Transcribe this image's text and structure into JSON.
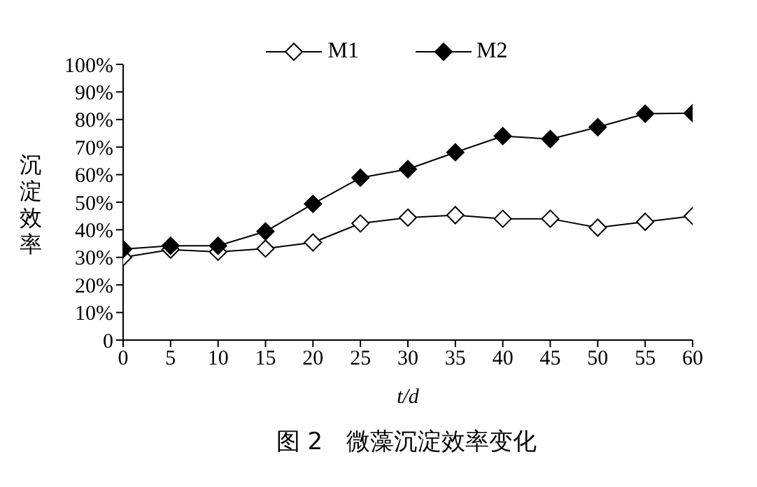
{
  "chart_data": {
    "type": "line",
    "title": "图 2　微藻沉淀效率变化",
    "xlabel": "t/d",
    "ylabel": "沉淀效率",
    "x": [
      0,
      5,
      10,
      15,
      20,
      25,
      30,
      35,
      40,
      45,
      50,
      55,
      60
    ],
    "series": [
      {
        "name": "M1",
        "color": "#000000",
        "values": [
          30,
          32.8,
          32,
          33.2,
          35.4,
          42.3,
          44.4,
          45.3,
          44,
          44,
          40.8,
          42.9,
          45
        ]
      },
      {
        "name": "M2",
        "color": "#000000",
        "values": [
          33,
          34.2,
          34.2,
          39.4,
          49.4,
          58.9,
          62,
          68.1,
          74,
          72.9,
          77.2,
          82.1,
          82.3
        ]
      }
    ],
    "xlim": [
      0,
      60
    ],
    "xticks": [
      0,
      5,
      10,
      15,
      20,
      25,
      30,
      35,
      40,
      45,
      50,
      55,
      60
    ],
    "ylim": [
      0,
      100
    ],
    "yticks": [
      {
        "value": 0,
        "label": "0"
      },
      {
        "value": 10,
        "label": "10%"
      },
      {
        "value": 20,
        "label": "20%"
      },
      {
        "value": 30,
        "label": "30%"
      },
      {
        "value": 40,
        "label": "40%"
      },
      {
        "value": 50,
        "label": "50%"
      },
      {
        "value": 60,
        "label": "60%"
      },
      {
        "value": 70,
        "label": "70%"
      },
      {
        "value": 80,
        "label": "80%"
      },
      {
        "value": 90,
        "label": "90%"
      },
      {
        "value": 100,
        "label": "100%"
      }
    ],
    "grid": false,
    "legend": "top",
    "marker": "diamond",
    "line_style": "solid"
  }
}
